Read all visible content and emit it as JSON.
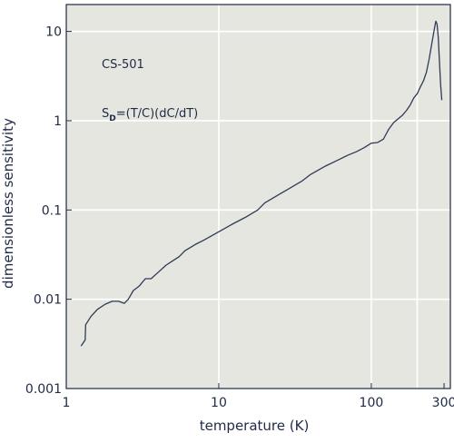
{
  "chart_data": {
    "type": "line",
    "xlabel": "temperature (K)",
    "ylabel": "dimensionless sensitivity",
    "xscale": "log",
    "yscale": "log",
    "xlim": [
      1,
      330
    ],
    "ylim": [
      0.001,
      20
    ],
    "x_ticks": [
      {
        "value": 1,
        "label": "1"
      },
      {
        "value": 10,
        "label": "10"
      },
      {
        "value": 100,
        "label": "100"
      },
      {
        "value": 300,
        "label": "300"
      }
    ],
    "y_ticks": [
      {
        "value": 0.001,
        "label": "0.001"
      },
      {
        "value": 0.01,
        "label": "0.01"
      },
      {
        "value": 0.1,
        "label": "0.1"
      },
      {
        "value": 1,
        "label": "1"
      },
      {
        "value": 10,
        "label": "10"
      }
    ],
    "gridlines_x": [
      10,
      100,
      200
    ],
    "gridlines_y": [
      0.01,
      0.1,
      1,
      10
    ],
    "grid": true,
    "annotations": {
      "model": "CS-501",
      "formula_main": "S",
      "formula_sub": "D",
      "formula_rest": "=(T/C)(dC/dT)"
    },
    "series": [
      {
        "x": [
          1.25,
          1.33,
          1.34,
          1.37,
          1.45,
          1.6,
          1.8,
          2.0,
          2.2,
          2.4,
          2.55,
          2.75,
          3.0,
          3.3,
          3.6,
          4.0,
          4.5,
          5.0,
          5.5,
          6.0,
          7.0,
          8.0,
          10,
          12,
          15,
          18,
          20,
          25,
          30,
          35,
          40,
          45,
          50,
          60,
          70,
          80,
          90,
          100,
          110,
          120,
          130,
          140,
          150,
          160,
          170,
          180,
          190,
          200,
          210,
          220,
          230,
          240,
          250,
          260,
          265,
          270,
          275,
          280,
          285,
          290
        ],
        "values": [
          0.003,
          0.0035,
          0.0052,
          0.0055,
          0.0064,
          0.0077,
          0.0088,
          0.0095,
          0.0095,
          0.009,
          0.01,
          0.0125,
          0.014,
          0.017,
          0.017,
          0.02,
          0.024,
          0.027,
          0.03,
          0.035,
          0.041,
          0.046,
          0.057,
          0.068,
          0.083,
          0.1,
          0.12,
          0.15,
          0.18,
          0.21,
          0.25,
          0.28,
          0.31,
          0.36,
          0.41,
          0.45,
          0.5,
          0.56,
          0.57,
          0.62,
          0.8,
          0.95,
          1.05,
          1.15,
          1.3,
          1.5,
          1.8,
          2.0,
          2.4,
          2.8,
          3.5,
          5.0,
          7.5,
          11,
          13,
          12,
          8.5,
          4.5,
          2.5,
          1.7
        ]
      }
    ]
  }
}
